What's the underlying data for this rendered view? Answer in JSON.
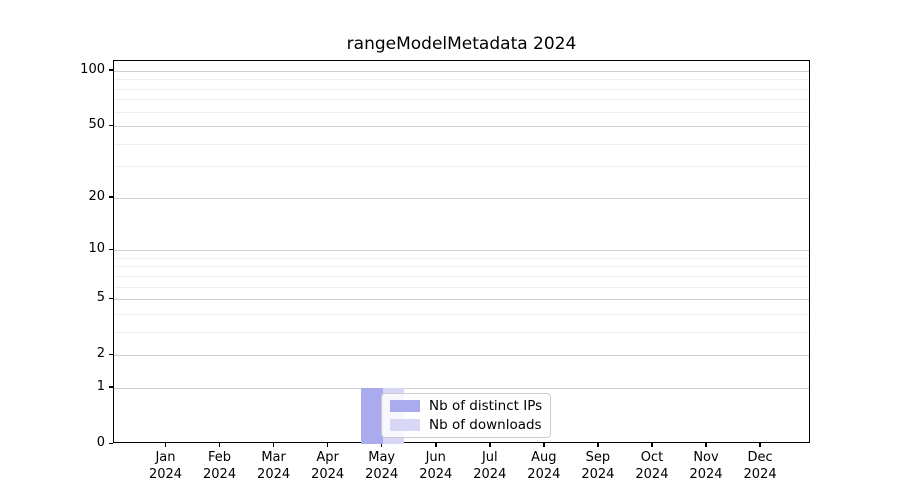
{
  "figure": {
    "title": "rangeModelMetadata 2024"
  },
  "chart_data": {
    "type": "bar",
    "title": "rangeModelMetadata 2024",
    "x_axis": {
      "categories": [
        "Jan",
        "Feb",
        "Mar",
        "Apr",
        "May",
        "Jun",
        "Jul",
        "Aug",
        "Sep",
        "Oct",
        "Nov",
        "Dec"
      ],
      "year": "2024"
    },
    "y_axis": {
      "scale": "log1p",
      "lim": [
        0,
        113
      ],
      "ticks": [
        0,
        1,
        2,
        5,
        10,
        20,
        50,
        100
      ],
      "minor_ticks": [
        3,
        4,
        6,
        7,
        8,
        9,
        30,
        40,
        60,
        70,
        80,
        90
      ],
      "grid": true
    },
    "series": [
      {
        "name": "Nb of distinct IPs",
        "color": "#aaaaee",
        "values": [
          0,
          0,
          0,
          0,
          1,
          0,
          0,
          0,
          0,
          0,
          0,
          0
        ]
      },
      {
        "name": "Nb of downloads",
        "color": "#d8d8f6",
        "values": [
          0,
          0,
          0,
          0,
          1,
          0,
          0,
          0,
          0,
          0,
          0,
          0
        ]
      }
    ],
    "legend": {
      "items": [
        "Nb of distinct IPs",
        "Nb of downloads"
      ],
      "position": "bottom-center"
    }
  },
  "colors": {
    "major_grid": "#d0d0d0",
    "minor_grid": "#efefef",
    "axis": "#000000",
    "background": "#ffffff"
  }
}
